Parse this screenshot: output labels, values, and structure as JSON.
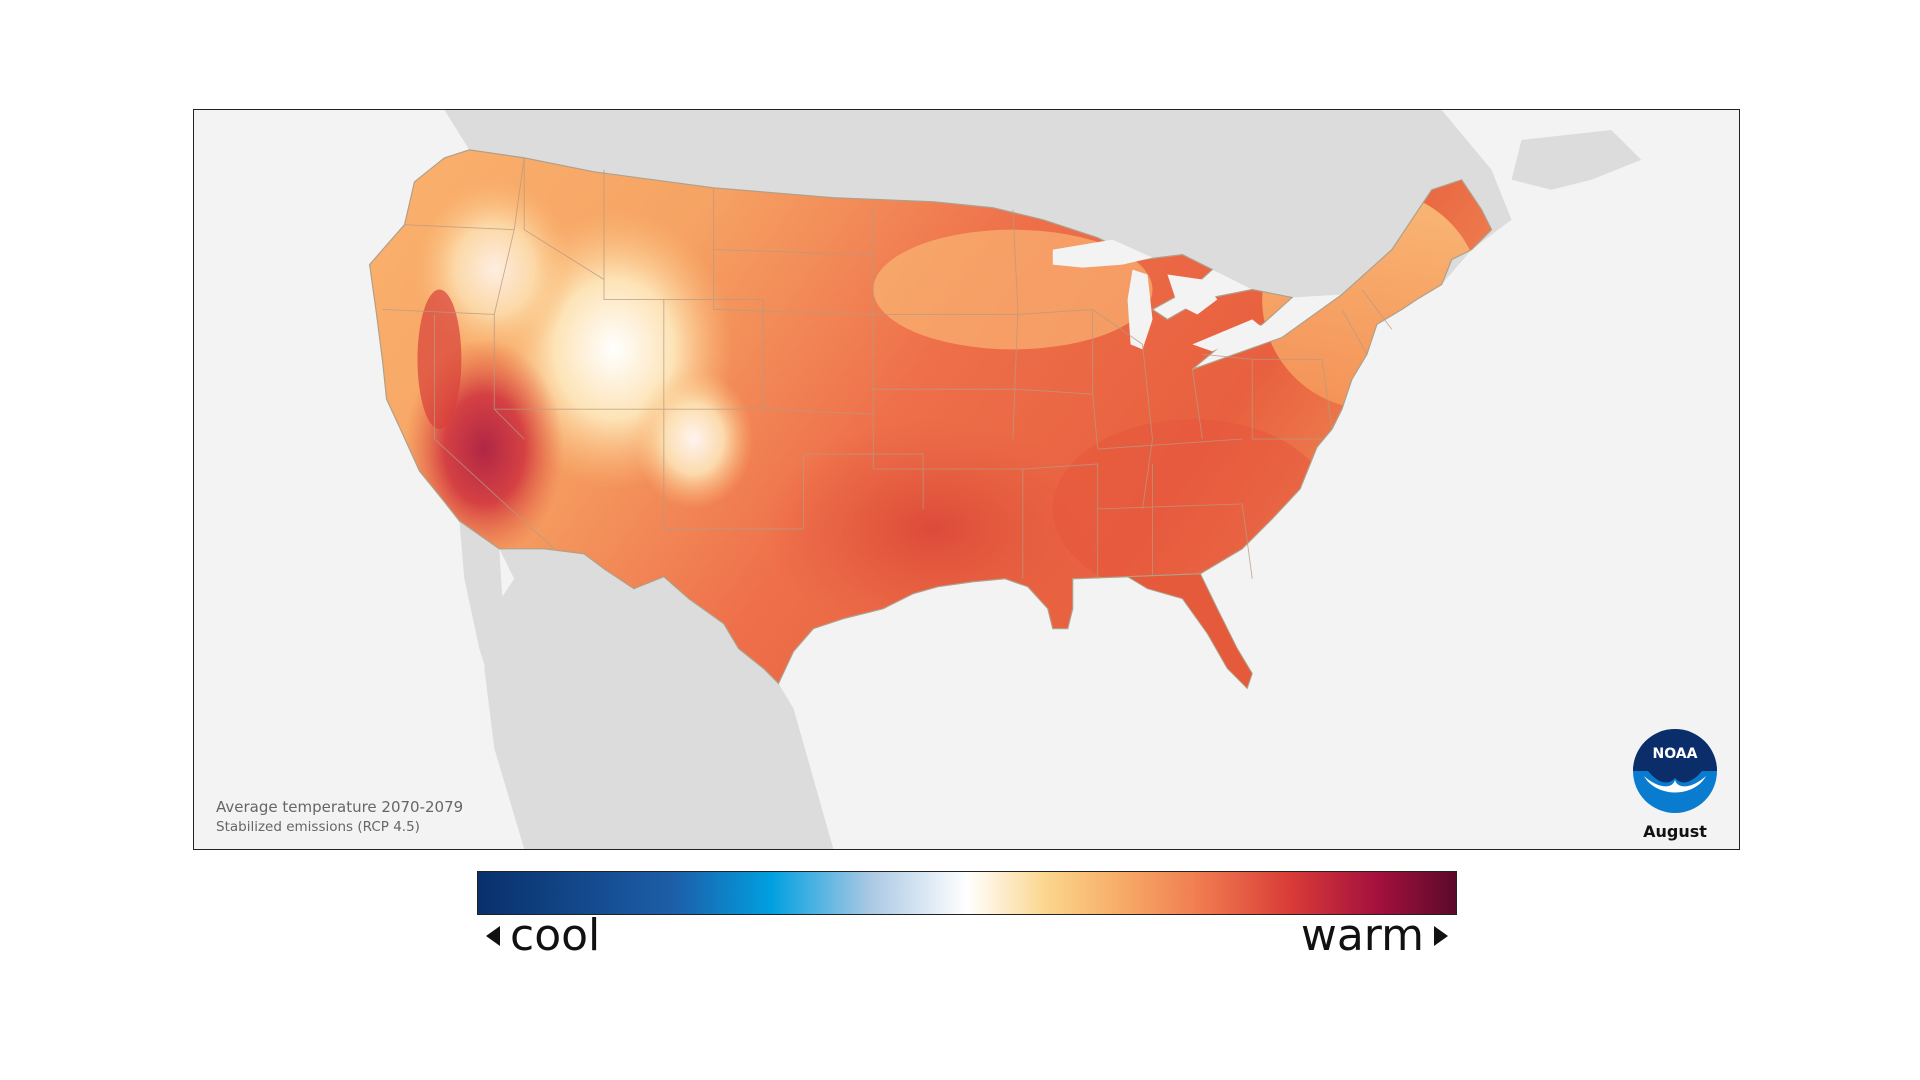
{
  "map": {
    "caption_line1": "Average temperature 2070-2079",
    "caption_line2": "Stabilized emissions (RCP 4.5)",
    "month": "August",
    "logo_text": "NOAA"
  },
  "legend": {
    "low_label": "cool",
    "high_label": "warm",
    "colors": [
      "#08306b",
      "#1d5ea8",
      "#00a0e0",
      "#a9c8e4",
      "#ffffff",
      "#fbd68e",
      "#f7b06a",
      "#f07a4f",
      "#d93c37",
      "#a4103e",
      "#5b0a2a"
    ]
  },
  "colors": {
    "land_outside": "#dcdcdc",
    "water": "#f3f3f3",
    "hot": "#e35a3c",
    "warm": "#f3834e",
    "mild": "#fbc07a",
    "hottest": "#a4103e"
  }
}
